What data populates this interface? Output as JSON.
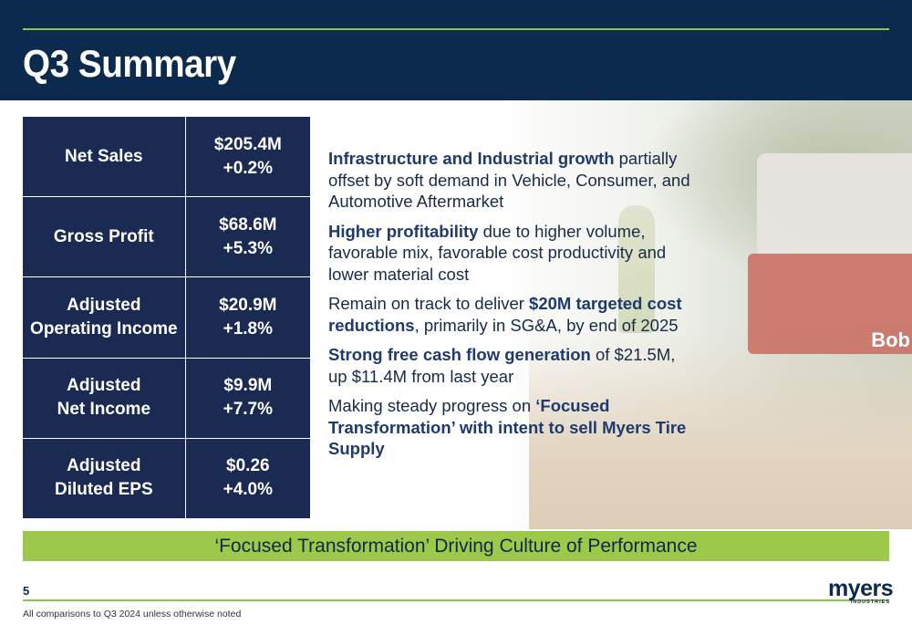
{
  "title": "Q3 Summary",
  "metrics": [
    {
      "label_lines": [
        "Net Sales"
      ],
      "value": "$205.4M",
      "change": "+0.2%"
    },
    {
      "label_lines": [
        "Gross Profit"
      ],
      "value": "$68.6M",
      "change": "+5.3%"
    },
    {
      "label_lines": [
        "Adjusted",
        "Operating Income"
      ],
      "value": "$20.9M",
      "change": "+1.8%"
    },
    {
      "label_lines": [
        "Adjusted",
        "Net Income"
      ],
      "value": "$9.9M",
      "change": "+7.7%"
    },
    {
      "label_lines": [
        "Adjusted",
        "Diluted EPS"
      ],
      "value": "$0.26",
      "change": "+4.0%"
    }
  ],
  "bullets": [
    {
      "parts": [
        {
          "text": "Infrastructure and Industrial growth",
          "em": true
        },
        {
          "text": " partially offset by soft demand in Vehicle, Consumer, and Automotive Aftermarket",
          "em": false
        }
      ]
    },
    {
      "parts": [
        {
          "text": "Higher profitability",
          "em": true
        },
        {
          "text": " due to higher volume, favorable mix, favorable cost productivity and lower material cost",
          "em": false
        }
      ]
    },
    {
      "parts": [
        {
          "text": "Remain on track to deliver ",
          "em": false
        },
        {
          "text": "$20M targeted cost reductions",
          "em": true
        },
        {
          "text": ", primarily in SG&A, by end of 2025",
          "em": false
        }
      ]
    },
    {
      "parts": [
        {
          "text": "Strong free cash flow generation",
          "em": true
        },
        {
          "text": " of $21.5M, up $11.4M from last year",
          "em": false
        }
      ]
    },
    {
      "parts": [
        {
          "text": "Making steady progress on ",
          "em": false
        },
        {
          "text": "‘Focused Transformation’ with intent to sell Myers Tire Supply",
          "em": true
        }
      ]
    }
  ],
  "banner": "‘Focused Transformation’ Driving Culture of Performance",
  "page_number": "5",
  "footnote": "All comparisons to Q3 2024 unless otherwise noted",
  "logo": {
    "main": "myers",
    "sub": "INDUSTRIES"
  },
  "photo_text": "Bob",
  "colors": {
    "navy": "#0c2a4e",
    "table": "#1a2a52",
    "accent_green": "#9dc94a",
    "emphasis": "#1f3a6e"
  }
}
